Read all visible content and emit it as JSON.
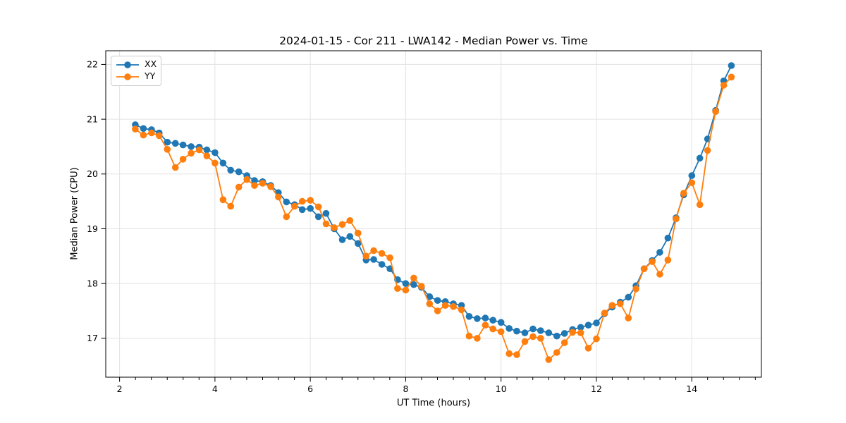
{
  "chart_data": {
    "type": "line",
    "title": "2024-01-15 - Cor 211 - LWA142 - Median Power vs. Time",
    "xlabel": "UT Time (hours)",
    "ylabel": "Median Power (CPU)",
    "xlim": [
      1.71,
      15.46
    ],
    "ylim": [
      16.29,
      22.25
    ],
    "xticks": [
      2,
      4,
      6,
      8,
      10,
      12,
      14
    ],
    "yticks": [
      17,
      18,
      19,
      20,
      21,
      22
    ],
    "x_minor_step": 0.3333,
    "grid": true,
    "legend_position": "upper-left",
    "marker": "circle",
    "x": [
      2.33,
      2.5,
      2.67,
      2.83,
      3.0,
      3.17,
      3.33,
      3.5,
      3.67,
      3.83,
      4.0,
      4.17,
      4.33,
      4.5,
      4.67,
      4.83,
      5.0,
      5.17,
      5.33,
      5.5,
      5.67,
      5.83,
      6.0,
      6.17,
      6.33,
      6.5,
      6.67,
      6.83,
      7.0,
      7.17,
      7.33,
      7.5,
      7.67,
      7.83,
      8.0,
      8.17,
      8.33,
      8.5,
      8.67,
      8.83,
      9.0,
      9.17,
      9.33,
      9.5,
      9.67,
      9.83,
      10.0,
      10.17,
      10.33,
      10.5,
      10.67,
      10.83,
      11.0,
      11.17,
      11.33,
      11.5,
      11.67,
      11.83,
      12.0,
      12.17,
      12.33,
      12.5,
      12.67,
      12.83,
      13.0,
      13.17,
      13.33,
      13.5,
      13.67,
      13.83,
      14.0,
      14.17,
      14.33,
      14.5,
      14.67,
      14.83
    ],
    "series": [
      {
        "name": "XX",
        "color": "#1f77b4",
        "values": [
          20.9,
          20.83,
          20.81,
          20.75,
          20.58,
          20.56,
          20.53,
          20.5,
          20.49,
          20.44,
          20.39,
          20.2,
          20.07,
          20.04,
          19.97,
          19.88,
          19.86,
          19.79,
          19.66,
          19.49,
          19.44,
          19.35,
          19.37,
          19.22,
          19.28,
          19.0,
          18.8,
          18.86,
          18.73,
          18.43,
          18.44,
          18.35,
          18.27,
          18.07,
          18.0,
          17.98,
          17.93,
          17.76,
          17.69,
          17.67,
          17.63,
          17.6,
          17.4,
          17.36,
          17.37,
          17.33,
          17.29,
          17.18,
          17.13,
          17.1,
          17.17,
          17.14,
          17.1,
          17.04,
          17.09,
          17.16,
          17.2,
          17.24,
          17.28,
          17.45,
          17.57,
          17.66,
          17.75,
          17.96,
          18.27,
          18.42,
          18.57,
          18.83,
          19.2,
          19.62,
          19.97,
          20.29,
          20.64,
          21.16,
          21.7,
          21.98
        ]
      },
      {
        "name": "YY",
        "color": "#ff7f0e",
        "values": [
          20.82,
          20.71,
          20.75,
          20.7,
          20.45,
          20.12,
          20.27,
          20.38,
          20.44,
          20.33,
          20.2,
          19.53,
          19.41,
          19.76,
          19.9,
          19.79,
          19.83,
          19.77,
          19.58,
          19.22,
          19.41,
          19.5,
          19.52,
          19.4,
          19.09,
          19.02,
          19.08,
          19.15,
          18.92,
          18.5,
          18.6,
          18.55,
          18.47,
          17.91,
          17.88,
          18.1,
          17.95,
          17.63,
          17.5,
          17.6,
          17.58,
          17.52,
          17.04,
          17.0,
          17.24,
          17.17,
          17.12,
          16.72,
          16.7,
          16.94,
          17.03,
          17.0,
          16.61,
          16.74,
          16.92,
          17.11,
          17.1,
          16.82,
          16.99,
          17.46,
          17.6,
          17.63,
          17.37,
          17.9,
          18.27,
          18.4,
          18.17,
          18.43,
          19.18,
          19.65,
          19.84,
          19.44,
          20.43,
          21.14,
          21.62,
          21.77
        ]
      }
    ],
    "style": {
      "grid_color": "#e3e3e3",
      "spine_color": "#000000",
      "tick_color": "#000000",
      "background": "#ffffff"
    }
  }
}
